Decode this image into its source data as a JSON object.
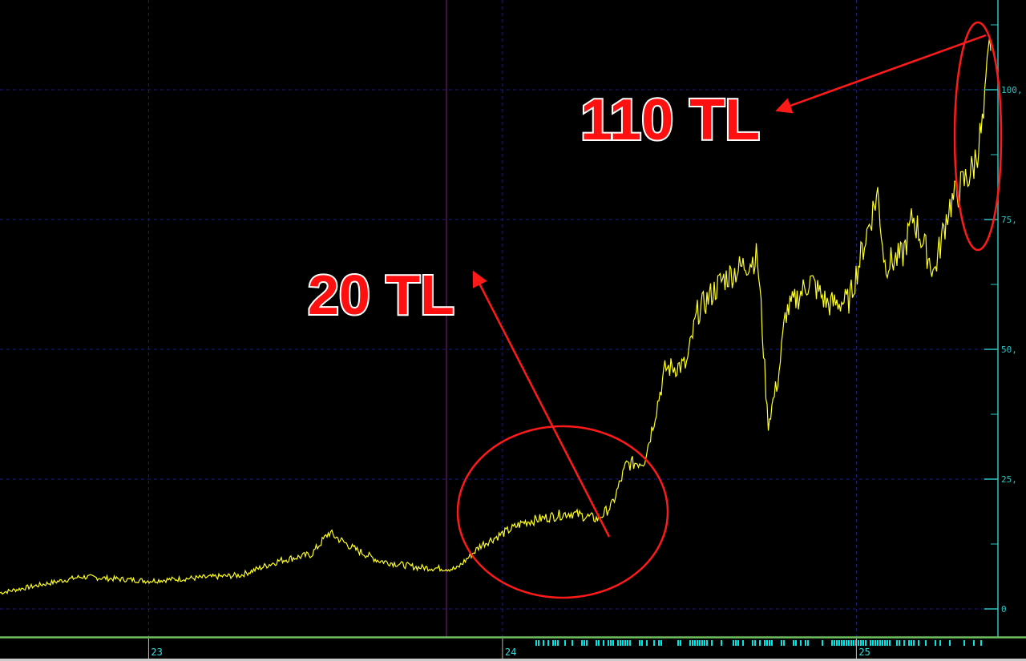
{
  "chart_data": {
    "type": "line",
    "title": "",
    "xlabel": "",
    "ylabel": "",
    "xlim": [
      22.58,
      25.4
    ],
    "ylim": [
      -5,
      115
    ],
    "x_ticks": [
      {
        "value": 23,
        "label": "23"
      },
      {
        "value": 24,
        "label": "24"
      },
      {
        "value": 25,
        "label": "25"
      }
    ],
    "y_ticks": [
      {
        "value": 0,
        "label": "0"
      },
      {
        "value": 25,
        "label": "25,"
      },
      {
        "value": 50,
        "label": "50,"
      },
      {
        "value": 75,
        "label": "75,"
      },
      {
        "value": 100,
        "label": "100,"
      }
    ],
    "grid": true,
    "colors": {
      "background": "#000000",
      "series": "#ffff20",
      "axis": "#2ec4c4",
      "grid": "#1a1a8a",
      "annotation": "#ff1010",
      "marker_line": "#8a1a8a",
      "volume_ticks": "#00e5e5"
    },
    "series": [
      {
        "x": [
          22.58,
          22.81,
          23.0,
          23.26,
          23.37,
          23.46,
          23.51,
          23.58,
          23.65,
          23.76,
          23.87,
          23.94,
          24.06,
          24.19,
          24.27,
          24.31,
          24.35,
          24.4,
          24.42,
          24.46,
          24.52,
          24.55,
          24.62,
          24.72,
          24.73,
          24.75,
          24.78,
          24.8,
          24.87,
          24.92,
          24.98,
          25.03,
          25.06,
          25.08,
          25.13,
          25.16,
          25.22,
          25.26,
          25.3,
          25.33,
          25.36,
          25.37,
          25.38
        ],
        "values": [
          3.1,
          6.2,
          5.4,
          6.5,
          9.3,
          10.5,
          14.7,
          11.6,
          9.3,
          8.0,
          7.7,
          12.3,
          16.7,
          18.5,
          17.3,
          20.0,
          27.8,
          28.5,
          34.0,
          46.3,
          47.0,
          57.0,
          63.3,
          67.9,
          58.6,
          35.5,
          44.8,
          57.0,
          63.3,
          58.6,
          59.4,
          72.5,
          80.2,
          66.4,
          67.9,
          75.6,
          64.8,
          77.2,
          81.8,
          84.9,
          94.1,
          103.4,
          110.3
        ]
      }
    ],
    "annotations": [
      {
        "text": "20 TL",
        "points_to": {
          "x": 24.31,
          "y": 17
        }
      },
      {
        "text": "110 TL",
        "points_to": {
          "x": 25.38,
          "y": 110
        }
      }
    ]
  }
}
